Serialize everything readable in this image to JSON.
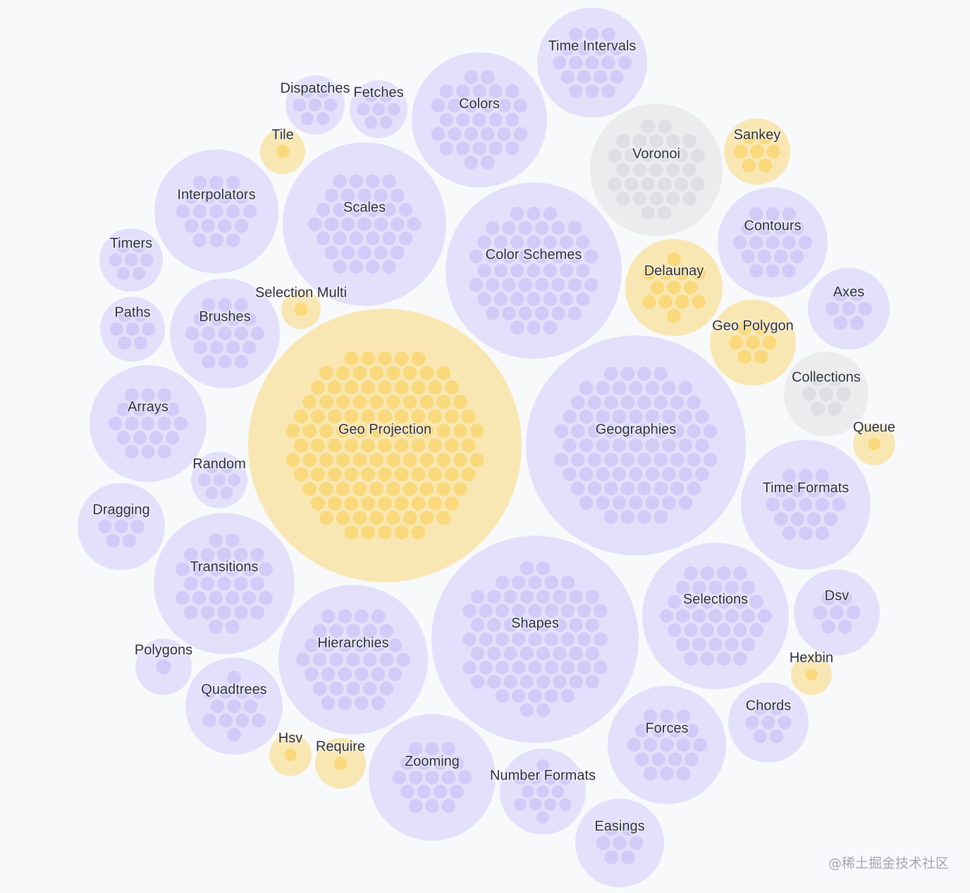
{
  "watermark": "@稀土掘金技术社区",
  "colors": {
    "lavender": "#e4e0fb",
    "lavender_dot": "#d2cbf8",
    "yellow": "#f9e7b3",
    "yellow_dot": "#f9d97b",
    "gray": "#ececee",
    "gray_dot": "#dfdfe3"
  },
  "chart_data": {
    "type": "bubble",
    "title": "",
    "series": [
      {
        "name": "Geo Projection",
        "size": 100,
        "color": "yellow"
      },
      {
        "name": "Geographies",
        "size": 66,
        "color": "lavender"
      },
      {
        "name": "Shapes",
        "size": 60,
        "color": "lavender"
      },
      {
        "name": "Color Schemes",
        "size": 43,
        "color": "lavender"
      },
      {
        "name": "Scales",
        "size": 37,
        "color": "lavender"
      },
      {
        "name": "Selections",
        "size": 30,
        "color": "lavender"
      },
      {
        "name": "Hierarchies",
        "size": 30,
        "color": "lavender"
      },
      {
        "name": "Transitions",
        "size": 27,
        "color": "lavender"
      },
      {
        "name": "Colors",
        "size": 25,
        "color": "lavender"
      },
      {
        "name": "Voronoi",
        "size": 24,
        "color": "gray"
      },
      {
        "name": "Zooming",
        "size": 22,
        "color": "lavender"
      },
      {
        "name": "Time Formats",
        "size": 23,
        "color": "lavender"
      },
      {
        "name": "Forces",
        "size": 19,
        "color": "lavender"
      },
      {
        "name": "Arrays",
        "size": 19,
        "color": "lavender"
      },
      {
        "name": "Interpolators",
        "size": 21,
        "color": "lavender"
      },
      {
        "name": "Brushes",
        "size": 17,
        "color": "lavender"
      },
      {
        "name": "Contours",
        "size": 17,
        "color": "lavender"
      },
      {
        "name": "Time Intervals",
        "size": 17,
        "color": "lavender"
      },
      {
        "name": "Quadtrees",
        "size": 13,
        "color": "lavender"
      },
      {
        "name": "Number Formats",
        "size": 12,
        "color": "lavender"
      },
      {
        "name": "Delaunay",
        "size": 13,
        "color": "yellow"
      },
      {
        "name": "Dragging",
        "size": 11,
        "color": "lavender"
      },
      {
        "name": "Easings",
        "size": 11,
        "color": "lavender"
      },
      {
        "name": "Geo Polygon",
        "size": 10,
        "color": "yellow"
      },
      {
        "name": "Dsv",
        "size": 10,
        "color": "lavender"
      },
      {
        "name": "Chords",
        "size": 9,
        "color": "lavender"
      },
      {
        "name": "Axes",
        "size": 9,
        "color": "lavender"
      },
      {
        "name": "Collections",
        "size": 9,
        "color": "gray"
      },
      {
        "name": "Paths",
        "size": 6,
        "color": "lavender"
      },
      {
        "name": "Timers",
        "size": 6,
        "color": "lavender"
      },
      {
        "name": "Sankey",
        "size": 6,
        "color": "yellow"
      },
      {
        "name": "Dispatches",
        "size": 5,
        "color": "lavender"
      },
      {
        "name": "Fetches",
        "size": 5,
        "color": "lavender"
      },
      {
        "name": "Random",
        "size": 5,
        "color": "lavender"
      },
      {
        "name": "Require",
        "size": 4,
        "color": "yellow"
      },
      {
        "name": "Polygons",
        "size": 4,
        "color": "lavender"
      },
      {
        "name": "Hsv",
        "size": 3,
        "color": "yellow"
      },
      {
        "name": "Queue",
        "size": 3,
        "color": "yellow"
      },
      {
        "name": "Hexbin",
        "size": 3,
        "color": "yellow"
      },
      {
        "name": "Tile",
        "size": 3,
        "color": "yellow"
      },
      {
        "name": "Selection Multi",
        "size": 2,
        "color": "yellow"
      }
    ]
  }
}
